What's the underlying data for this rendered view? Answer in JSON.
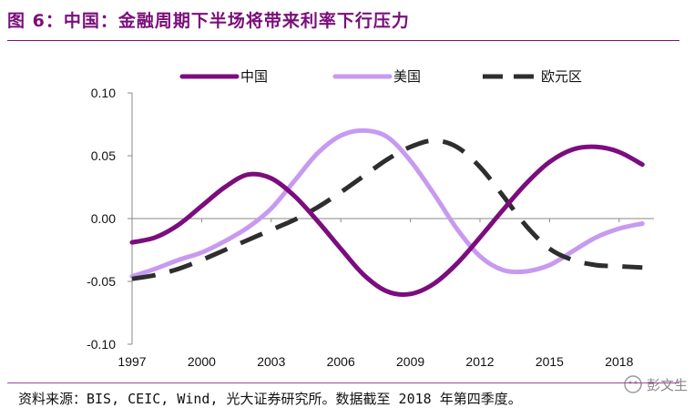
{
  "header": {
    "title": "图 6：中国：金融周期下半场将带来利率下行压力"
  },
  "footer": {
    "source": "资料来源：BIS, CEIC, Wind, 光大证券研究所。数据截至 2018 年第四季度。"
  },
  "watermark": {
    "text": "彭文生"
  },
  "colors": {
    "china": "#7b0d7e",
    "usa": "#c79af0",
    "euro": "#2e2e2e",
    "accent": "#7a0e7a"
  },
  "chart_data": {
    "type": "line",
    "title": "",
    "xlabel": "",
    "ylabel": "",
    "xlim": [
      1997,
      2019.5
    ],
    "ylim": [
      -0.1,
      0.1
    ],
    "xticks": [
      1997,
      2000,
      2003,
      2006,
      2009,
      2012,
      2015,
      2018
    ],
    "xtick_labels": [
      "1997",
      "2000",
      "2003",
      "2006",
      "2009",
      "2012",
      "2015",
      "2018"
    ],
    "yticks": [
      0.1,
      0.05,
      0.0,
      -0.05,
      -0.1
    ],
    "ytick_labels": [
      "0.10",
      "0.05",
      "0.00",
      "-0.05",
      "-0.10"
    ],
    "legend_position": "top",
    "series": [
      {
        "name": "中国",
        "style": "solid",
        "color": "#7b0d7e",
        "x": [
          1997,
          1998,
          1999,
          2000,
          2001,
          2002,
          2003,
          2004,
          2005,
          2006,
          2007,
          2008,
          2009,
          2010,
          2011,
          2012,
          2013,
          2014,
          2015,
          2016,
          2017,
          2018,
          2019
        ],
        "y": [
          -0.019,
          -0.015,
          -0.005,
          0.01,
          0.025,
          0.035,
          0.032,
          0.018,
          -0.002,
          -0.024,
          -0.045,
          -0.058,
          -0.06,
          -0.052,
          -0.036,
          -0.015,
          0.007,
          0.028,
          0.045,
          0.055,
          0.057,
          0.053,
          0.043
        ]
      },
      {
        "name": "美国",
        "style": "solid",
        "color": "#c79af0",
        "x": [
          1997,
          1998,
          1999,
          2000,
          2001,
          2002,
          2003,
          2004,
          2005,
          2006,
          2007,
          2008,
          2009,
          2010,
          2011,
          2012,
          2013,
          2014,
          2015,
          2016,
          2017,
          2018,
          2019
        ],
        "y": [
          -0.046,
          -0.04,
          -0.033,
          -0.027,
          -0.018,
          -0.007,
          0.008,
          0.03,
          0.052,
          0.066,
          0.07,
          0.065,
          0.046,
          0.02,
          -0.008,
          -0.03,
          -0.041,
          -0.042,
          -0.037,
          -0.026,
          -0.015,
          -0.008,
          -0.004
        ]
      },
      {
        "name": "欧元区",
        "style": "dashed",
        "color": "#2e2e2e",
        "x": [
          1997,
          1998,
          1999,
          2000,
          2001,
          2002,
          2003,
          2004,
          2005,
          2006,
          2007,
          2008,
          2009,
          2010,
          2011,
          2012,
          2013,
          2014,
          2015,
          2016,
          2017,
          2018,
          2019
        ],
        "y": [
          -0.048,
          -0.045,
          -0.04,
          -0.033,
          -0.025,
          -0.017,
          -0.009,
          -0.001,
          0.009,
          0.021,
          0.034,
          0.047,
          0.057,
          0.062,
          0.057,
          0.041,
          0.018,
          -0.006,
          -0.024,
          -0.033,
          -0.037,
          -0.038,
          -0.039
        ]
      }
    ]
  }
}
